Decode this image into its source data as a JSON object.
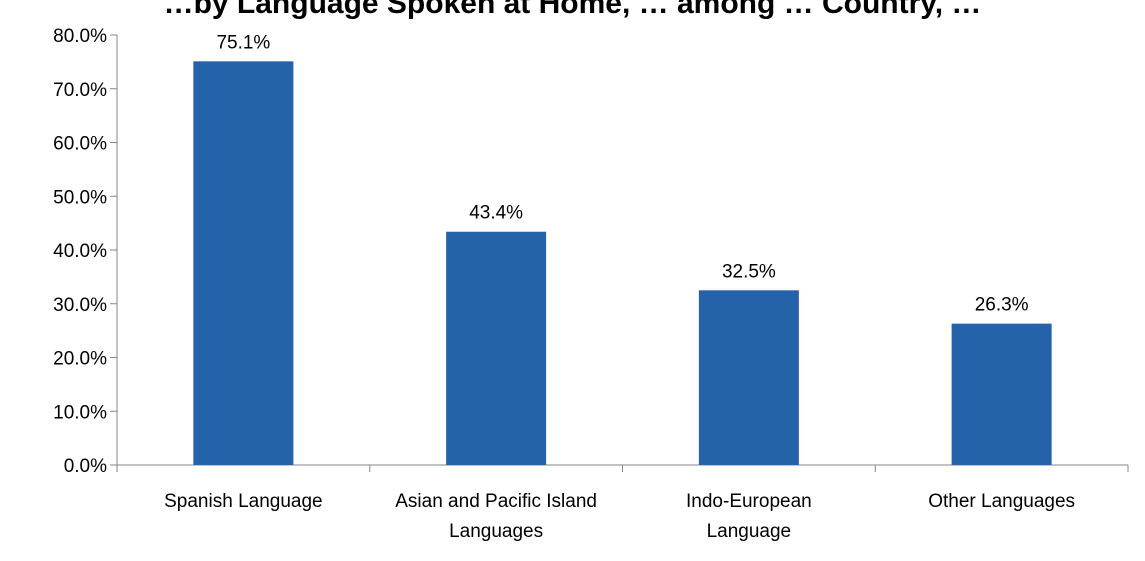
{
  "chart_data": {
    "type": "bar",
    "title": "…by Language Spoken at Home, … among … Country, …",
    "categories": [
      "Spanish Language",
      "Asian and Pacific Island Languages",
      "Indo-European Language",
      "Other Languages"
    ],
    "category_label_lines": [
      [
        "Spanish Language"
      ],
      [
        "Asian and Pacific Island",
        "Languages"
      ],
      [
        "Indo-European",
        "Language"
      ],
      [
        "Other Languages"
      ]
    ],
    "values": [
      75.1,
      43.4,
      32.5,
      26.3
    ],
    "data_labels": [
      "75.1%",
      "43.4%",
      "32.5%",
      "26.3%"
    ],
    "ylim": [
      0,
      80
    ],
    "y_ticks": [
      0,
      10,
      20,
      30,
      40,
      50,
      60,
      70,
      80
    ],
    "y_tick_labels": [
      "0.0%",
      "10.0%",
      "20.0%",
      "30.0%",
      "40.0%",
      "50.0%",
      "60.0%",
      "70.0%",
      "80.0%"
    ],
    "bar_color": "#2462AA",
    "axis_color": "#868686",
    "grid": false,
    "legend": "none",
    "xlabel": "",
    "ylabel": ""
  }
}
